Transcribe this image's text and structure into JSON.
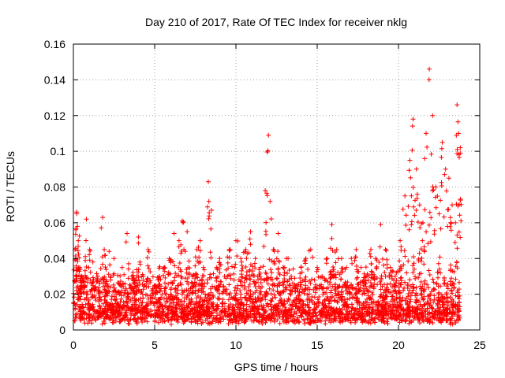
{
  "chart_data": {
    "type": "scatter",
    "title": "Day 210 of 2017, Rate Of TEC Index for receiver nklg",
    "xlabel": "GPS time / hours",
    "ylabel": "ROTI / TECUs",
    "xlim": [
      0,
      25
    ],
    "ylim": [
      0,
      0.16
    ],
    "xticks": [
      0,
      5,
      10,
      15,
      20,
      25
    ],
    "yticks": [
      0,
      0.02,
      0.04,
      0.06,
      0.08,
      0.1,
      0.12,
      0.14,
      0.16
    ],
    "xtick_labels": [
      "0",
      "5",
      "10",
      "15",
      "20",
      "25"
    ],
    "ytick_labels": [
      "0",
      "0.02",
      "0.04",
      "0.06",
      "0.08",
      "0.1",
      "0.12",
      "0.14",
      "0.16"
    ],
    "grid": true,
    "marker": "+",
    "color": "#ff0000",
    "series": [
      {
        "name": "ROTI",
        "x": [
          0.0,
          0.1,
          0.2,
          0.25,
          0.3,
          0.4,
          0.5,
          0.6,
          0.8,
          1.0,
          1.2,
          1.5,
          1.8,
          1.9,
          2.0,
          2.2,
          2.5,
          2.8,
          3.0,
          3.3,
          3.6,
          3.8,
          4.0,
          4.3,
          4.6,
          5.0,
          5.3,
          5.6,
          5.9,
          6.2,
          6.5,
          6.7,
          7.0,
          7.3,
          7.6,
          7.8,
          8.0,
          8.3,
          8.5,
          8.8,
          9.0,
          9.3,
          9.6,
          10.0,
          10.3,
          10.6,
          10.9,
          11.2,
          11.5,
          11.8,
          12.0,
          12.1,
          12.3,
          12.6,
          12.9,
          13.1,
          13.4,
          13.7,
          14.0,
          14.3,
          14.6,
          15.0,
          15.3,
          15.6,
          15.9,
          16.2,
          16.5,
          16.8,
          17.1,
          17.4,
          17.7,
          18.0,
          18.3,
          18.6,
          18.9,
          19.2,
          19.5,
          19.8,
          20.1,
          20.4,
          20.7,
          20.9,
          21.1,
          21.3,
          21.5,
          21.7,
          21.9,
          22.1,
          22.3,
          22.5,
          22.7,
          22.9,
          23.1,
          23.3,
          23.5,
          23.6,
          23.7,
          23.8
        ],
        "y": [
          0.015,
          0.045,
          0.066,
          0.058,
          0.05,
          0.035,
          0.03,
          0.028,
          0.062,
          0.045,
          0.038,
          0.03,
          0.063,
          0.045,
          0.028,
          0.044,
          0.04,
          0.026,
          0.035,
          0.054,
          0.03,
          0.028,
          0.052,
          0.03,
          0.045,
          0.025,
          0.03,
          0.035,
          0.04,
          0.054,
          0.05,
          0.061,
          0.055,
          0.03,
          0.045,
          0.05,
          0.035,
          0.083,
          0.067,
          0.035,
          0.04,
          0.03,
          0.045,
          0.05,
          0.04,
          0.045,
          0.055,
          0.04,
          0.035,
          0.078,
          0.109,
          0.072,
          0.045,
          0.054,
          0.035,
          0.04,
          0.03,
          0.025,
          0.035,
          0.04,
          0.045,
          0.035,
          0.03,
          0.04,
          0.059,
          0.045,
          0.04,
          0.035,
          0.04,
          0.045,
          0.035,
          0.03,
          0.045,
          0.04,
          0.059,
          0.045,
          0.035,
          0.03,
          0.05,
          0.075,
          0.095,
          0.118,
          0.09,
          0.07,
          0.06,
          0.11,
          0.146,
          0.12,
          0.08,
          0.065,
          0.105,
          0.09,
          0.085,
          0.07,
          0.06,
          0.126,
          0.11,
          0.099
        ],
        "band_low": 0.003,
        "band_typical": 0.02
      }
    ]
  }
}
